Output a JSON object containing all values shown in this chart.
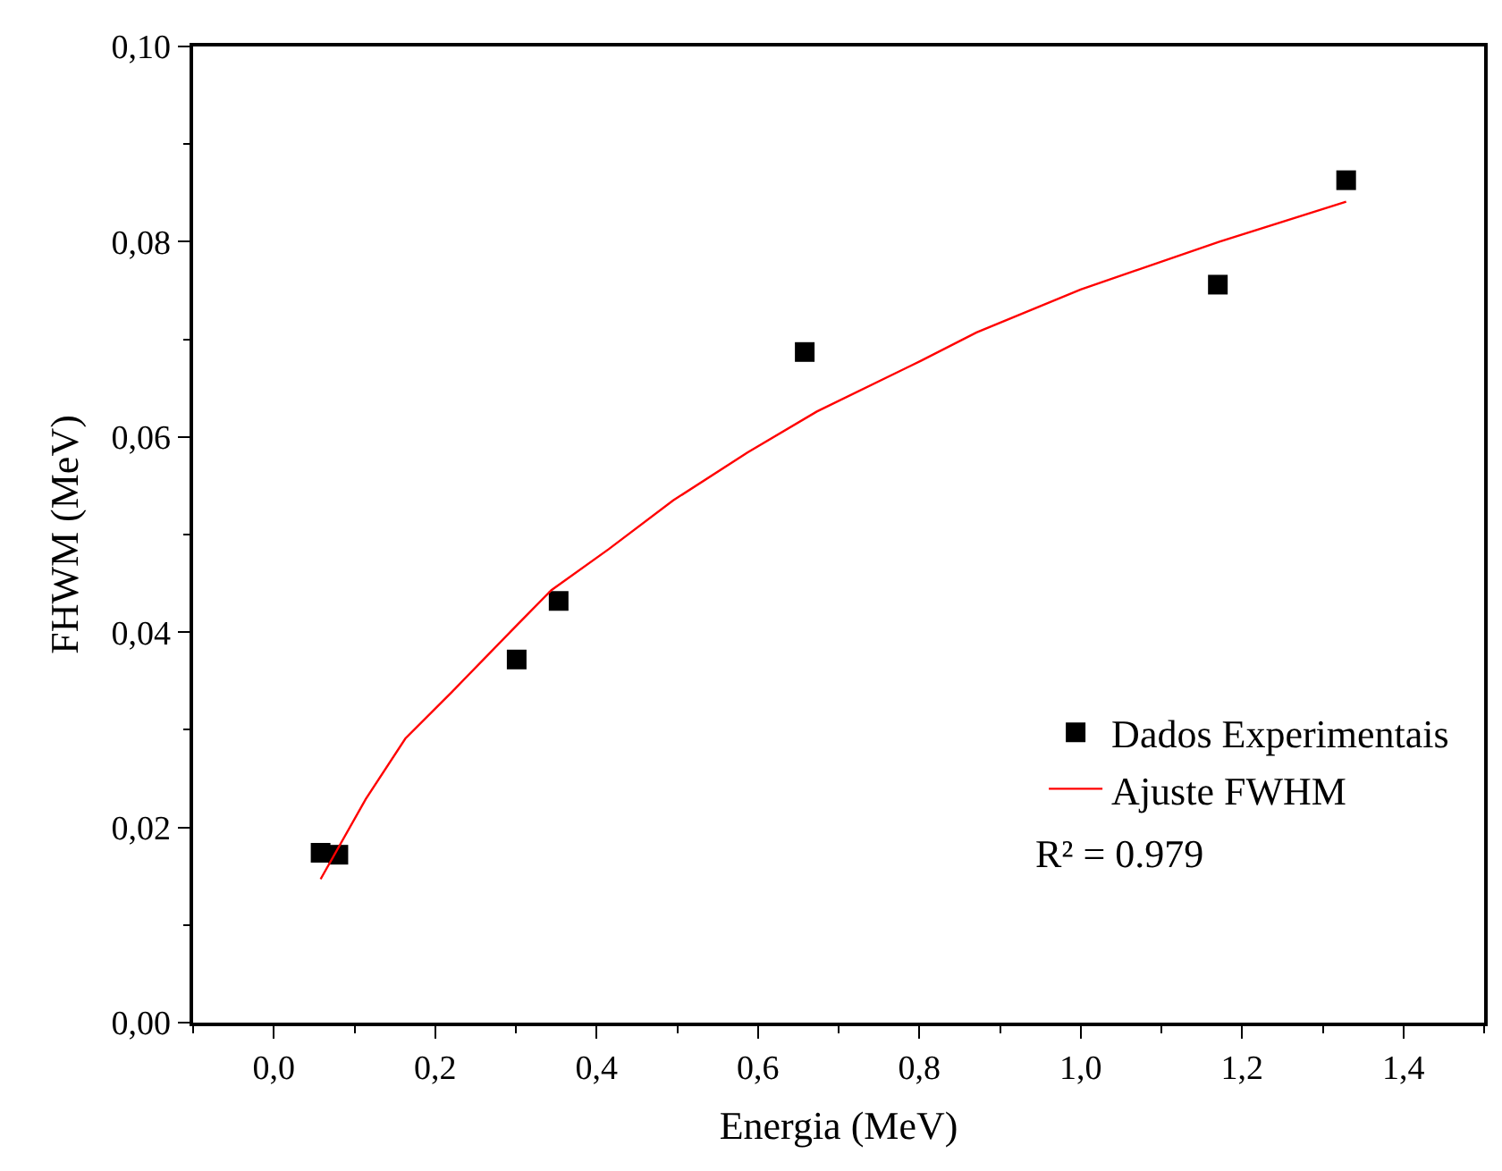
{
  "chart_data": {
    "type": "scatter",
    "xlabel": "Energia (MeV)",
    "ylabel": "FHWM (MeV)",
    "xlim": [
      -0.1,
      1.5
    ],
    "ylim": [
      0,
      0.1
    ],
    "xticks": [
      {
        "value": 0,
        "label": "0,0"
      },
      {
        "value": 0.2,
        "label": "0,2"
      },
      {
        "value": 0.4,
        "label": "0,4"
      },
      {
        "value": 0.6,
        "label": "0,6"
      },
      {
        "value": 0.8,
        "label": "0,8"
      },
      {
        "value": 1.0,
        "label": "1,0"
      },
      {
        "value": 1.2,
        "label": "1,2"
      },
      {
        "value": 1.4,
        "label": "1,4"
      }
    ],
    "yticks": [
      {
        "value": 0,
        "label": "0,00"
      },
      {
        "value": 0.02,
        "label": "0,02"
      },
      {
        "value": 0.04,
        "label": "0,04"
      },
      {
        "value": 0.06,
        "label": "0,06"
      },
      {
        "value": 0.08,
        "label": "0,08"
      },
      {
        "value": 0.1,
        "label": "0,10"
      }
    ],
    "grid": false,
    "legend": "bottom right",
    "series": [
      {
        "name": "Dados Experimentais",
        "marker": "square",
        "color": "#000000",
        "x": [
          0.058,
          0.08,
          0.301,
          0.353,
          0.658,
          1.17,
          1.329
        ],
        "values": [
          0.0174,
          0.0172,
          0.0372,
          0.0432,
          0.0687,
          0.0756,
          0.0863
        ]
      },
      {
        "name": "Ajuste FWHM",
        "type": "line",
        "color": "#ff0000",
        "x": [
          0.058,
          0.114,
          0.163,
          0.221,
          0.301,
          0.344,
          0.415,
          0.495,
          0.587,
          0.673,
          0.802,
          0.871,
          1.0,
          1.172,
          1.329
        ],
        "values": [
          0.0147,
          0.0229,
          0.0291,
          0.0339,
          0.0407,
          0.0443,
          0.0485,
          0.0535,
          0.0584,
          0.0626,
          0.0678,
          0.0707,
          0.0751,
          0.08,
          0.0841
        ]
      }
    ],
    "annotations": [
      "R² = 0.979"
    ]
  }
}
